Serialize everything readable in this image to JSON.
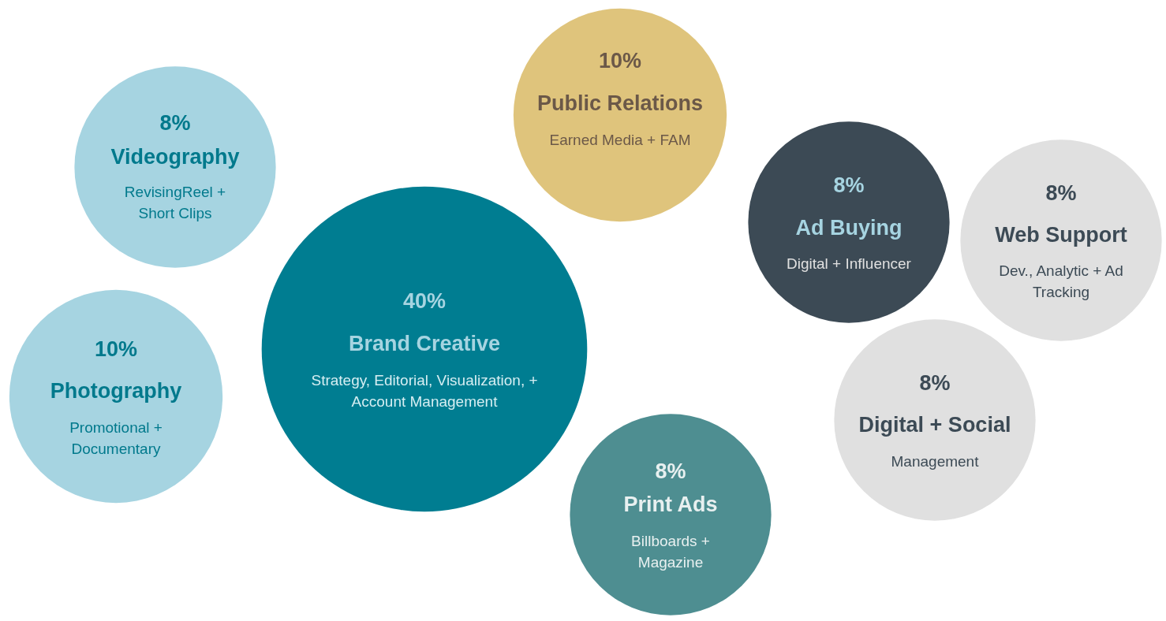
{
  "chart_data": {
    "type": "other",
    "categories": [
      "Videography",
      "Photography",
      "Brand Creative",
      "Public Relations",
      "Print Ads",
      "Ad Buying",
      "Web Support",
      "Digital + Social"
    ],
    "values": [
      8,
      10,
      40,
      10,
      8,
      8,
      8,
      8
    ],
    "value_labels": [
      "8%",
      "10%",
      "40%",
      "10%",
      "8%",
      "8%",
      "8%",
      "8%"
    ],
    "colors": [
      "#a6d4e1",
      "#a6d4e1",
      "#007d91",
      "#dfc47c",
      "#4e8e91",
      "#3c4a55",
      "#e0e0e0",
      "#e0e0e0"
    ],
    "annotations": [
      {
        "text": "RevisingReel + Short Clips",
        "x": "Videography"
      },
      {
        "text": "Promotional + Documentary",
        "x": "Photography"
      },
      {
        "text": "Strategy, Editorial, Visualization, + Account Management",
        "x": "Brand Creative"
      },
      {
        "text": "Earned Media + FAM",
        "x": "Public Relations"
      },
      {
        "text": "Billboards + Magazine",
        "x": "Print Ads"
      },
      {
        "text": "Digital + Influencer",
        "x": "Ad Buying"
      },
      {
        "text": "Dev., Analytic + Ad Tracking",
        "x": "Web Support"
      },
      {
        "text": "Management",
        "x": "Digital + Social"
      }
    ],
    "legend": false
  }
}
